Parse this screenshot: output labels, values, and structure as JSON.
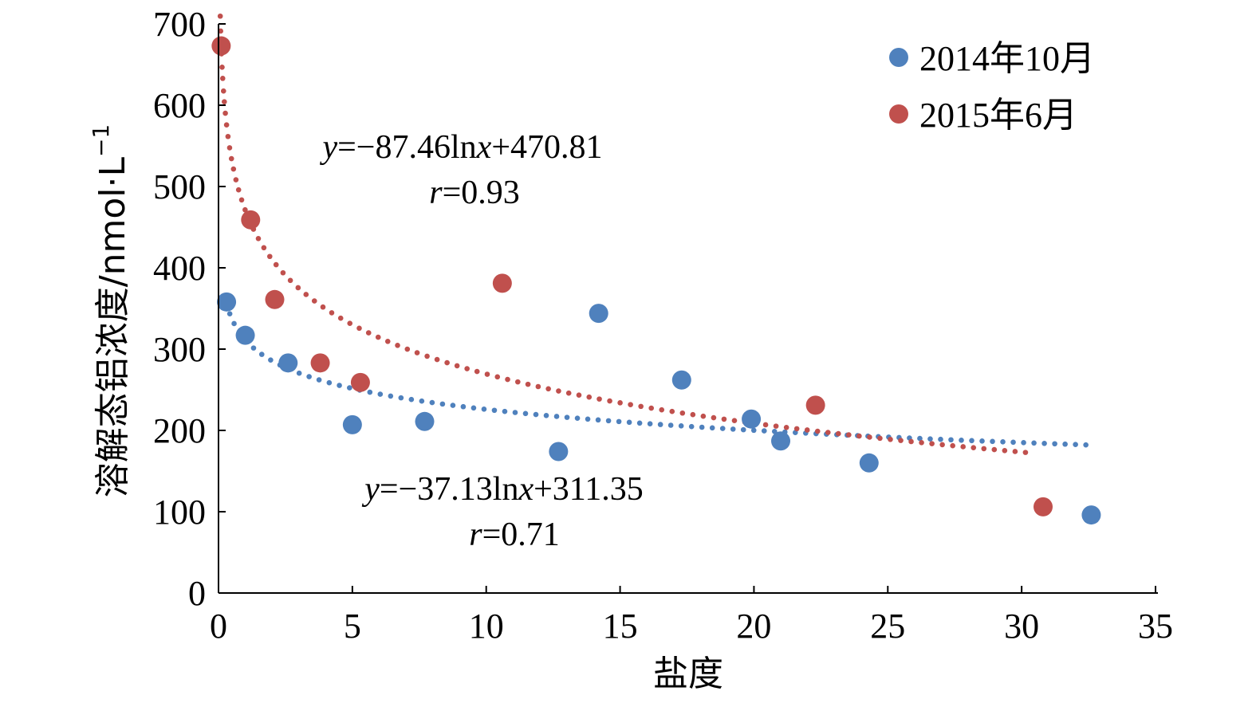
{
  "chart_data": {
    "type": "scatter",
    "xlabel": "盐度",
    "ylabel": "溶解态铝浓度/nmol·L",
    "ylabel_exp": "−1",
    "xlim": [
      0,
      35
    ],
    "ylim": [
      0,
      700
    ],
    "xticks": [
      0,
      5,
      10,
      15,
      20,
      25,
      30,
      35
    ],
    "yticks": [
      0,
      100,
      200,
      300,
      400,
      500,
      600,
      700
    ],
    "grid": false,
    "legend_position": "top-right",
    "series": [
      {
        "name": "2014年10月",
        "color": "#4f81bd",
        "x": [
          0.3,
          1.0,
          2.6,
          5.0,
          7.7,
          12.7,
          14.2,
          17.3,
          19.9,
          21.0,
          24.3,
          32.6
        ],
        "y": [
          358,
          317,
          283,
          207,
          211,
          174,
          344,
          262,
          214,
          187,
          160,
          96
        ],
        "trendline": {
          "type": "log",
          "a": -37.13,
          "b": 311.35,
          "x_from": 0.3,
          "x_to": 32.6
        },
        "equation": {
          "y_var": "y",
          "rhs_a": "=−37.13ln",
          "x_var": "x",
          "rhs_b": "+311.35",
          "r_var": "r",
          "r_value": "=0.71"
        }
      },
      {
        "name": "2015年6月",
        "color": "#c0504d",
        "x": [
          0.1,
          1.2,
          2.1,
          3.8,
          5.3,
          10.6,
          22.3,
          30.8
        ],
        "y": [
          673,
          459,
          361,
          283,
          259,
          381,
          231,
          106
        ],
        "trendline": {
          "type": "log",
          "a": -87.46,
          "b": 470.81,
          "x_from": 0.05,
          "x_to": 30.5
        },
        "equation": {
          "y_var": "y",
          "rhs_a": "=−87.46ln",
          "x_var": "x",
          "rhs_b": "+470.81",
          "r_var": "r",
          "r_value": "=0.93"
        }
      }
    ]
  }
}
